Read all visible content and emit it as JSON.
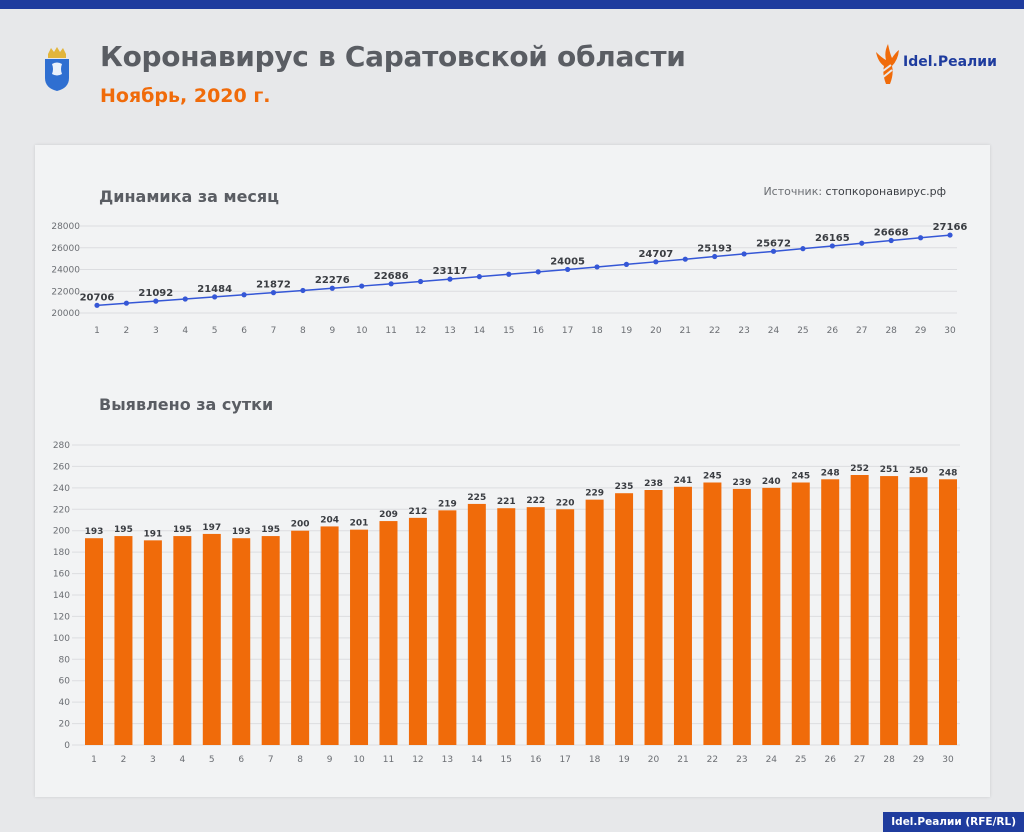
{
  "header": {
    "title": "Коронавирус в Саратовской области",
    "subtitle": "Ноябрь, 2020 г."
  },
  "logo": {
    "text": "Idel.Реалии"
  },
  "emblem": {
    "icon": "saratov-coat-of-arms-icon"
  },
  "colors": {
    "accent": "#f06b0a",
    "brand": "#1f3c9e",
    "line": "#3557d6"
  },
  "footer": {
    "credit": "Idel.Реалии (RFE/RL)"
  },
  "sections": {
    "line_title": "Динамика за месяц",
    "bar_title": "Выявлено за сутки",
    "source_label": "Источник:",
    "source_value": "стопкоронавирус.рф"
  },
  "chart_data": [
    {
      "type": "line",
      "title": "Динамика за месяц",
      "x": [
        1,
        2,
        3,
        4,
        5,
        6,
        7,
        8,
        9,
        10,
        11,
        12,
        13,
        14,
        15,
        16,
        17,
        18,
        19,
        20,
        21,
        22,
        23,
        24,
        25,
        26,
        27,
        28,
        29,
        30
      ],
      "values": [
        20706,
        20901,
        21092,
        21287,
        21484,
        21677,
        21872,
        22072,
        22276,
        22477,
        22686,
        22898,
        23117,
        23342,
        23563,
        23785,
        24005,
        24234,
        24469,
        24707,
        24948,
        25193,
        25432,
        25672,
        25917,
        26165,
        26417,
        26668,
        26918,
        27166
      ],
      "data_labels": {
        "1": 20706,
        "3": 21092,
        "5": 21484,
        "7": 21872,
        "9": 22276,
        "11": 22686,
        "13": 23117,
        "17": 24005,
        "20": 24707,
        "22": 25193,
        "24": 25672,
        "26": 26165,
        "28": 26668,
        "30": 27166
      },
      "y_ticks": [
        20000,
        22000,
        24000,
        26000,
        28000
      ],
      "ylim": [
        20000,
        28000
      ],
      "grid": true
    },
    {
      "type": "bar",
      "title": "Выявлено за сутки",
      "categories": [
        "1",
        "2",
        "3",
        "4",
        "5",
        "6",
        "7",
        "8",
        "9",
        "10",
        "11",
        "12",
        "13",
        "14",
        "15",
        "16",
        "17",
        "18",
        "19",
        "20",
        "21",
        "22",
        "23",
        "24",
        "25",
        "26",
        "27",
        "28",
        "29",
        "30"
      ],
      "values": [
        193,
        195,
        191,
        195,
        197,
        193,
        195,
        200,
        204,
        201,
        209,
        212,
        219,
        225,
        221,
        222,
        220,
        229,
        235,
        238,
        241,
        245,
        239,
        240,
        245,
        248,
        252,
        251,
        250,
        248
      ],
      "y_ticks": [
        0,
        20,
        40,
        60,
        80,
        100,
        120,
        140,
        160,
        180,
        200,
        220,
        240,
        260,
        280
      ],
      "ylim": [
        0,
        280
      ],
      "grid": true
    }
  ]
}
